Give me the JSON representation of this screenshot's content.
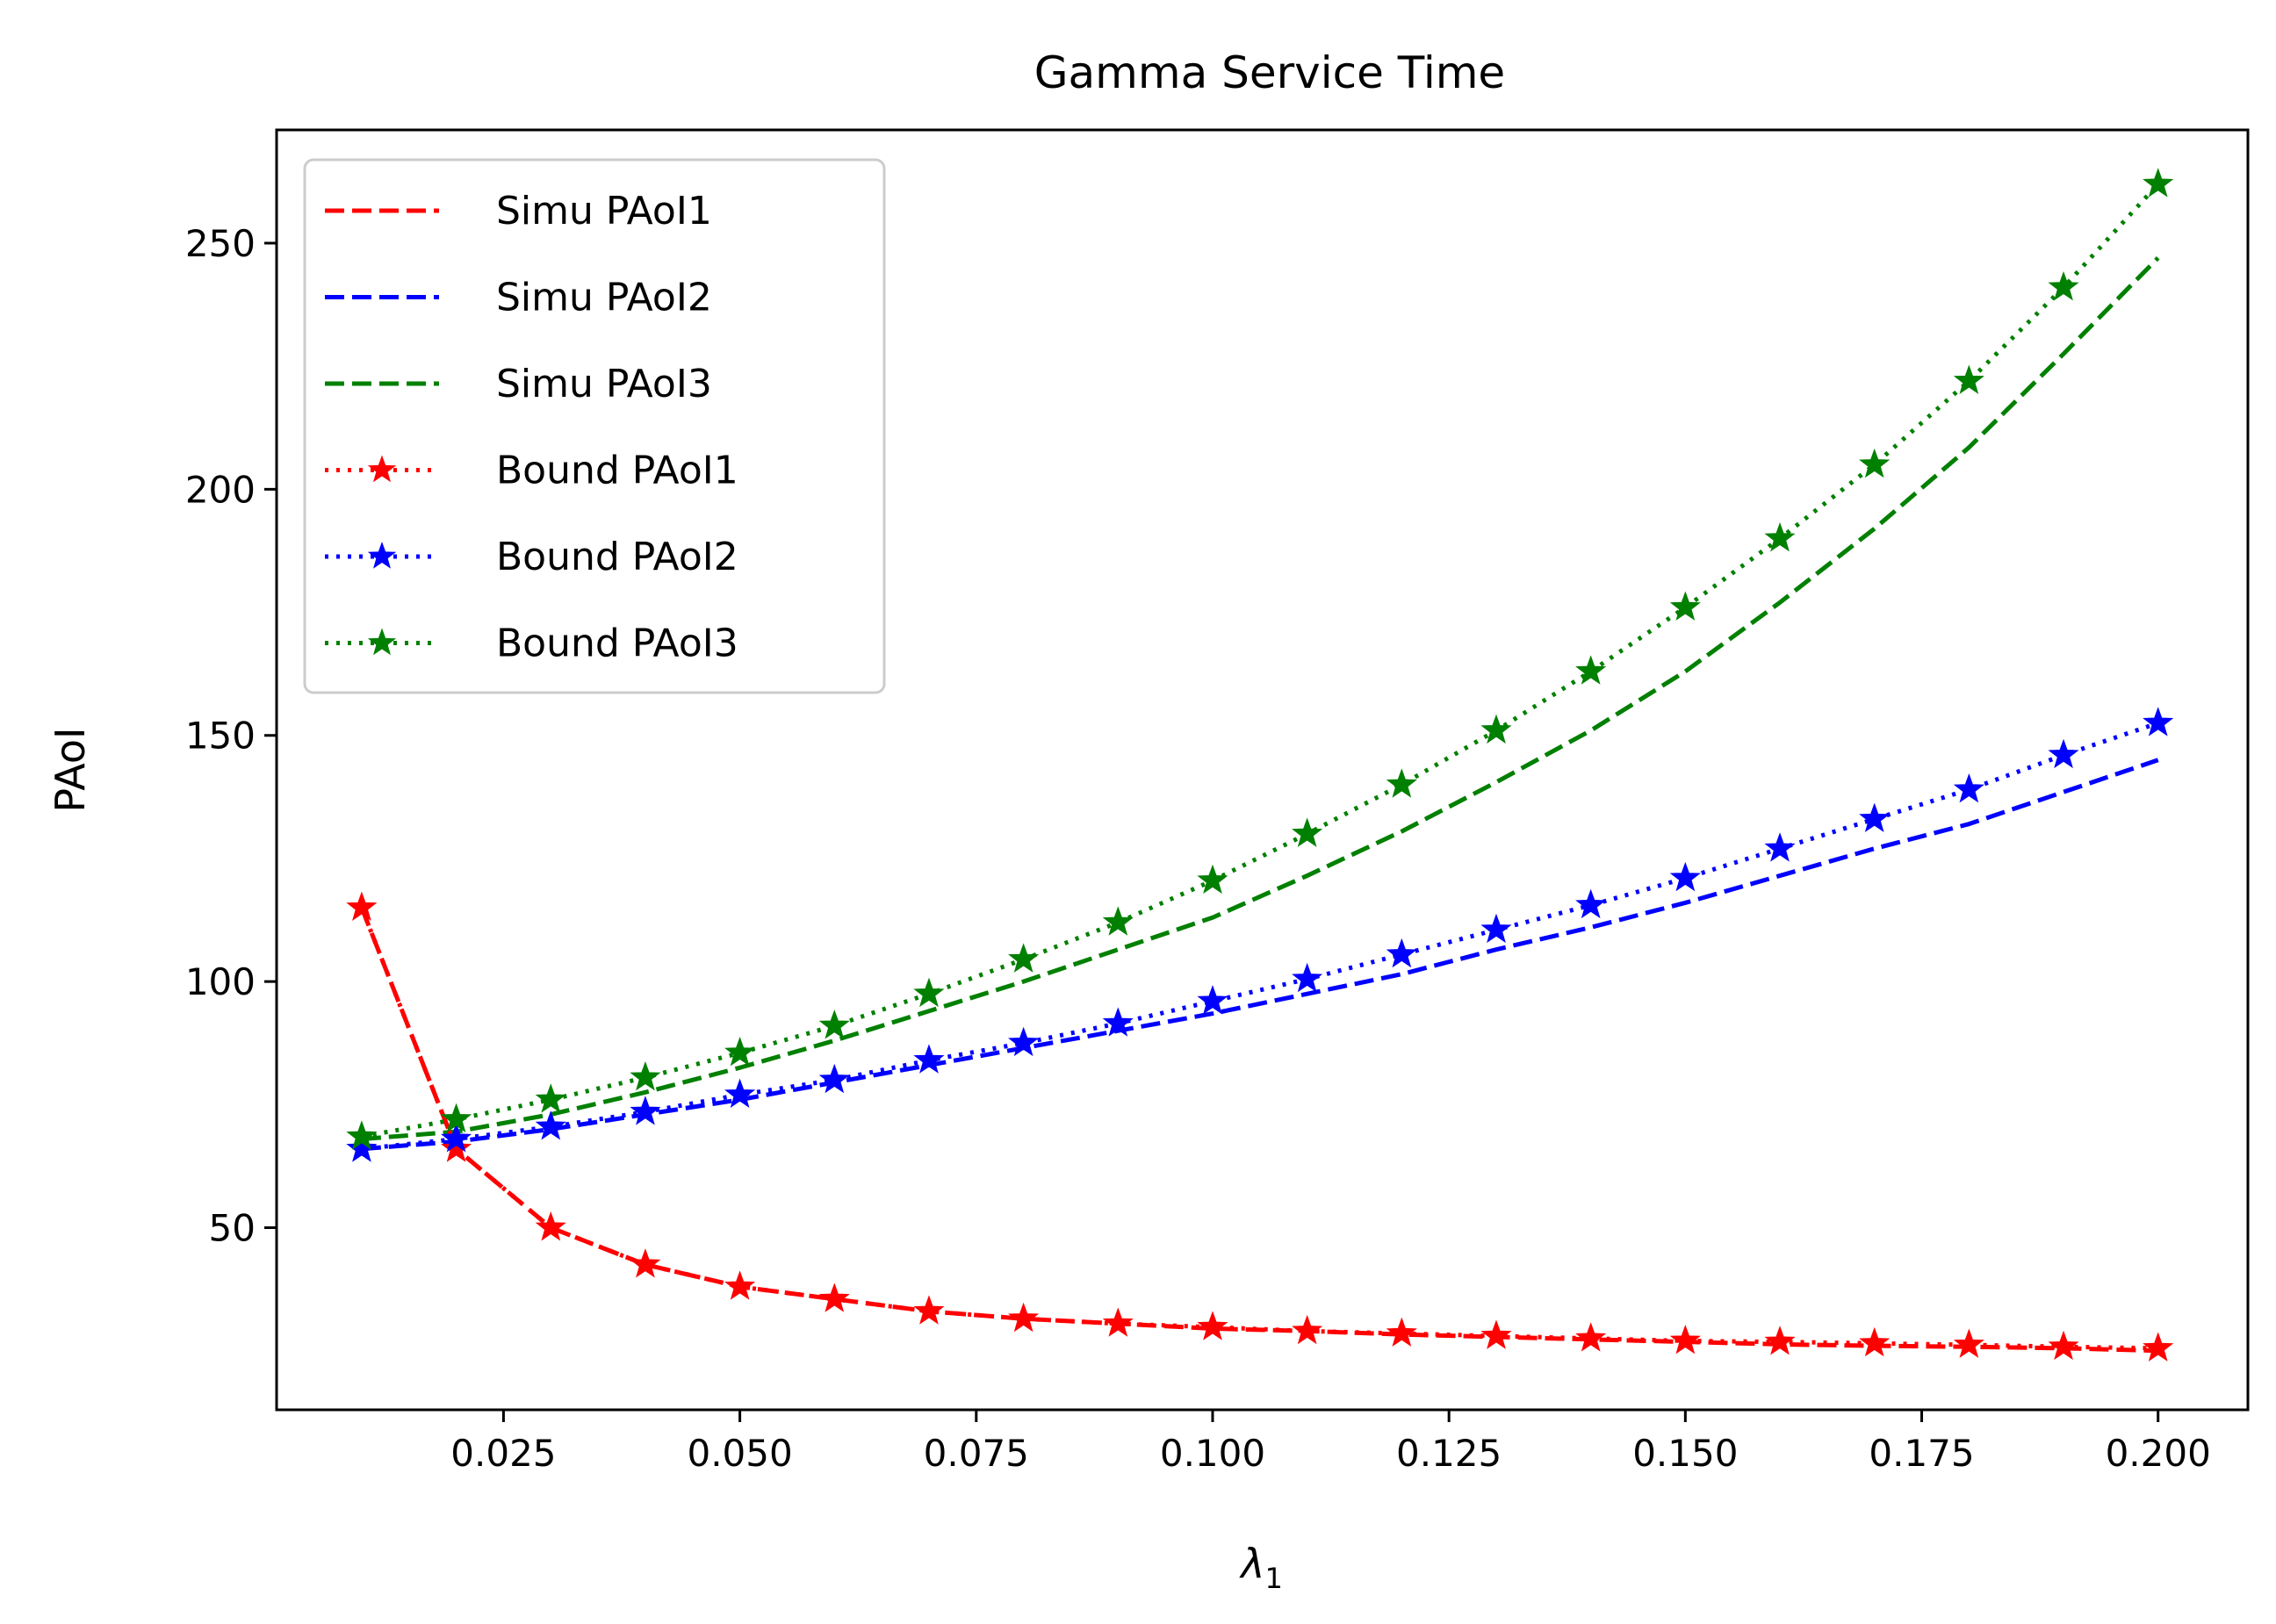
{
  "chart_data": {
    "type": "line",
    "title": "Gamma Service Time",
    "xlabel": "λ",
    "xlabel_sub": "1",
    "ylabel": "PAoI",
    "xlim": [
      0.001,
      0.2095
    ],
    "ylim": [
      13,
      273
    ],
    "xticks": [
      0.025,
      0.05,
      0.075,
      0.1,
      0.125,
      0.15,
      0.175,
      0.2
    ],
    "xtick_labels": [
      "0.025",
      "0.050",
      "0.075",
      "0.100",
      "0.125",
      "0.150",
      "0.175",
      "0.200"
    ],
    "yticks": [
      50,
      100,
      150,
      200,
      250
    ],
    "ytick_labels": [
      "50",
      "100",
      "150",
      "200",
      "250"
    ],
    "legend_position": "upper-left",
    "x": [
      0.01,
      0.02,
      0.03,
      0.04,
      0.05,
      0.06,
      0.07,
      0.08,
      0.09,
      0.1,
      0.11,
      0.12,
      0.13,
      0.14,
      0.15,
      0.16,
      0.17,
      0.18,
      0.19,
      0.2
    ],
    "series": [
      {
        "name": "Simu PAoI1",
        "color": "#ff0000",
        "style": "dashed",
        "marker": "none",
        "values": [
          115,
          66,
          50,
          42.5,
          38,
          35.5,
          33,
          31.5,
          30.5,
          29.5,
          29,
          28.3,
          27.8,
          27.3,
          26.8,
          26.3,
          26,
          25.8,
          25.5,
          25
        ]
      },
      {
        "name": "Simu PAoI2",
        "color": "#0000ff",
        "style": "dashed",
        "marker": "none",
        "values": [
          66,
          67.5,
          70,
          73,
          76,
          79.5,
          83,
          86.5,
          90,
          93.5,
          97.5,
          101.5,
          106.5,
          111,
          116,
          121.5,
          127,
          132,
          138.5,
          145
        ]
      },
      {
        "name": "Simu PAoI3",
        "color": "#008000",
        "style": "dashed",
        "marker": "none",
        "values": [
          68,
          69.5,
          73,
          77.5,
          82.5,
          88,
          94,
          100,
          106.5,
          113,
          121.5,
          130.5,
          140.5,
          151,
          163,
          177,
          192,
          208.5,
          227.5,
          247
        ]
      },
      {
        "name": "Bound PAoI1",
        "color": "#ff0000",
        "style": "dotted",
        "marker": "star",
        "values": [
          115,
          66,
          50,
          42.5,
          38,
          35.5,
          33,
          31.5,
          30.5,
          29.8,
          29,
          28.5,
          28,
          27.5,
          27,
          26.8,
          26.5,
          26.2,
          25.8,
          25.5
        ]
      },
      {
        "name": "Bound PAoI2",
        "color": "#0000ff",
        "style": "dotted",
        "marker": "star",
        "values": [
          66,
          68,
          70.5,
          73.5,
          77,
          80,
          84,
          87.5,
          91.5,
          96,
          100.5,
          105.5,
          110.5,
          115.5,
          121,
          127,
          133,
          139,
          146,
          152.5
        ]
      },
      {
        "name": "Bound PAoI3",
        "color": "#008000",
        "style": "dotted",
        "marker": "star",
        "values": [
          68.5,
          72,
          76,
          80.5,
          85.5,
          91,
          97.5,
          104.5,
          112,
          120.5,
          130,
          140,
          151,
          163,
          176,
          190,
          205,
          222,
          241,
          262
        ]
      }
    ]
  }
}
